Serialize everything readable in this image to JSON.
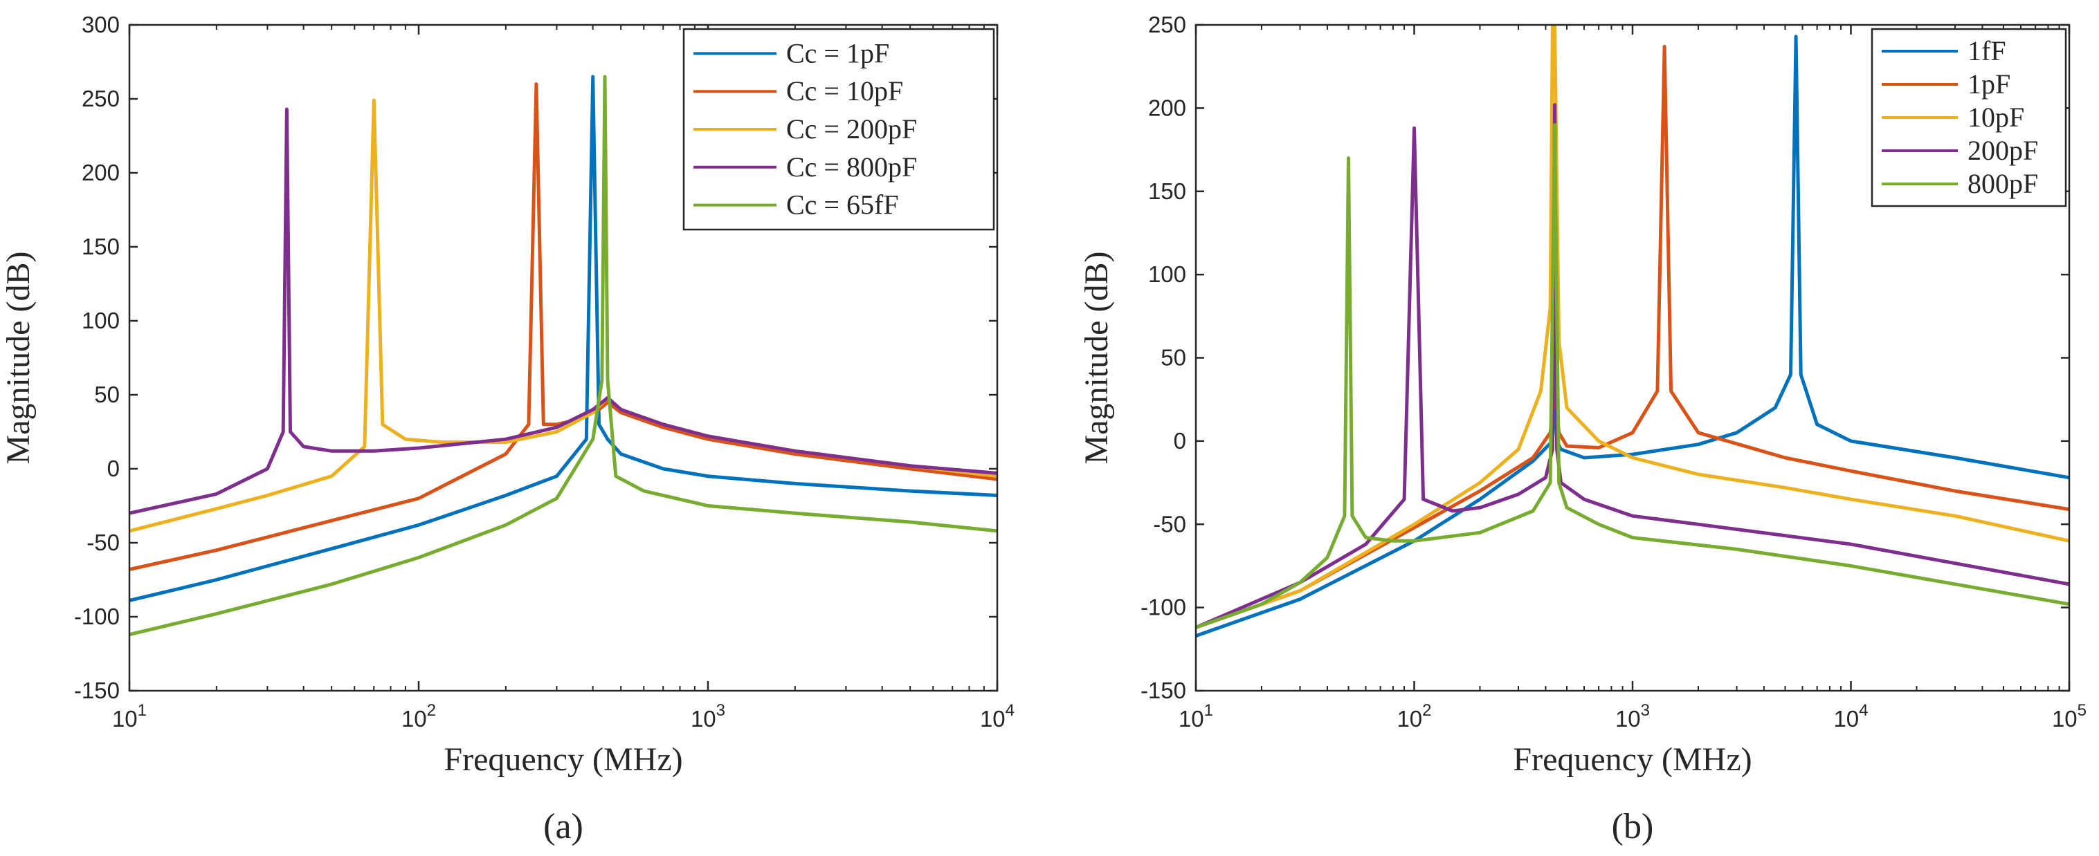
{
  "chart_data": [
    {
      "panel_label": "(a)",
      "type": "line",
      "scale_x": "log",
      "xlim": [
        10,
        10000
      ],
      "ylim": [
        -150,
        300
      ],
      "xlabel": "Frequency (MHz)",
      "ylabel": "Magnitude (dB)",
      "x_ticks": [
        10,
        100,
        1000,
        10000
      ],
      "x_tick_labels": [
        [
          "10",
          "1"
        ],
        [
          "10",
          "2"
        ],
        [
          "10",
          "3"
        ],
        [
          "10",
          "4"
        ]
      ],
      "y_ticks": [
        -150,
        -100,
        -50,
        0,
        50,
        100,
        150,
        200,
        250,
        300
      ],
      "y_tick_labels": [
        "-150",
        "-100",
        "-50",
        "0",
        "50",
        "100",
        "150",
        "200",
        "250",
        "300"
      ],
      "grid": false,
      "legend_position": "top-right",
      "series": [
        {
          "name": "Cc = 1pF",
          "color": "#0072BD",
          "x": [
            10,
            20,
            50,
            100,
            200,
            300,
            380,
            400,
            420,
            450,
            500,
            700,
            1000,
            2000,
            5000,
            10000
          ],
          "y": [
            -89,
            -75,
            -54,
            -38,
            -18,
            -5,
            20,
            265,
            30,
            20,
            10,
            0,
            -5,
            -10,
            -15,
            -18
          ]
        },
        {
          "name": "Cc = 10pF",
          "color": "#D95319",
          "x": [
            10,
            20,
            50,
            100,
            200,
            240,
            255,
            270,
            300,
            350,
            420,
            450,
            500,
            700,
            1000,
            2000,
            5000,
            10000
          ],
          "y": [
            -68,
            -55,
            -35,
            -20,
            10,
            30,
            260,
            30,
            30,
            33,
            40,
            45,
            38,
            28,
            20,
            10,
            0,
            -7
          ]
        },
        {
          "name": "Cc = 200pF",
          "color": "#EDB120",
          "x": [
            10,
            20,
            30,
            50,
            65,
            70,
            75,
            90,
            120,
            200,
            300,
            400,
            450,
            500,
            700,
            1000,
            2000,
            5000,
            10000
          ],
          "y": [
            -42,
            -27,
            -18,
            -5,
            15,
            249,
            30,
            20,
            18,
            18,
            25,
            38,
            48,
            40,
            30,
            22,
            12,
            2,
            -5
          ]
        },
        {
          "name": "Cc = 800pF",
          "color": "#7E2F8E",
          "x": [
            10,
            20,
            30,
            34,
            35,
            36,
            40,
            50,
            70,
            100,
            200,
            300,
            400,
            450,
            500,
            700,
            1000,
            2000,
            5000,
            10000
          ],
          "y": [
            -30,
            -17,
            0,
            25,
            243,
            25,
            15,
            12,
            12,
            14,
            20,
            28,
            40,
            48,
            40,
            30,
            22,
            12,
            2,
            -3
          ]
        },
        {
          "name": "Cc = 65fF",
          "color": "#77AC30",
          "x": [
            10,
            20,
            50,
            100,
            200,
            300,
            400,
            430,
            440,
            450,
            480,
            600,
            1000,
            2000,
            5000,
            10000
          ],
          "y": [
            -112,
            -98,
            -78,
            -60,
            -38,
            -20,
            20,
            60,
            265,
            60,
            -5,
            -15,
            -25,
            -30,
            -36,
            -42
          ]
        }
      ]
    },
    {
      "panel_label": "(b)",
      "type": "line",
      "scale_x": "log",
      "xlim": [
        10,
        100000
      ],
      "ylim": [
        -150,
        250
      ],
      "xlabel": "Frequency (MHz)",
      "ylabel": "Magnitude (dB)",
      "x_ticks": [
        10,
        100,
        1000,
        10000,
        100000
      ],
      "x_tick_labels": [
        [
          "10",
          "1"
        ],
        [
          "10",
          "2"
        ],
        [
          "10",
          "3"
        ],
        [
          "10",
          "4"
        ],
        [
          "10",
          "5"
        ]
      ],
      "y_ticks": [
        -150,
        -100,
        -50,
        0,
        50,
        100,
        150,
        200,
        250
      ],
      "y_tick_labels": [
        "-150",
        "-100",
        "-50",
        "0",
        "50",
        "100",
        "150",
        "200",
        "250"
      ],
      "grid": false,
      "legend_position": "top-right",
      "series": [
        {
          "name": "1fF",
          "color": "#0072BD",
          "x": [
            10,
            30,
            100,
            200,
            350,
            430,
            440,
            450,
            470,
            600,
            1000,
            2000,
            3000,
            4500,
            5300,
            5600,
            5900,
            7000,
            10000,
            30000,
            100000
          ],
          "y": [
            -117,
            -95,
            -60,
            -35,
            -12,
            0,
            40,
            0,
            -5,
            -10,
            -8,
            -2,
            5,
            20,
            40,
            243,
            40,
            10,
            0,
            -10,
            -22
          ]
        },
        {
          "name": "1pF",
          "color": "#D95319",
          "x": [
            10,
            30,
            100,
            200,
            350,
            420,
            440,
            460,
            500,
            700,
            1000,
            1300,
            1400,
            1500,
            2000,
            5000,
            10000,
            30000,
            100000
          ],
          "y": [
            -112,
            -90,
            -52,
            -30,
            -10,
            5,
            30,
            5,
            -3,
            -4,
            5,
            30,
            237,
            30,
            5,
            -10,
            -18,
            -30,
            -41
          ]
        },
        {
          "name": "10pF",
          "color": "#EDB120",
          "x": [
            10,
            30,
            100,
            200,
            300,
            380,
            420,
            430,
            440,
            460,
            500,
            700,
            1000,
            2000,
            5000,
            10000,
            30000,
            100000
          ],
          "y": [
            -112,
            -90,
            -50,
            -25,
            -5,
            30,
            80,
            250,
            250,
            60,
            20,
            0,
            -10,
            -20,
            -28,
            -35,
            -45,
            -60
          ]
        },
        {
          "name": "200pF",
          "color": "#7E2F8E",
          "x": [
            10,
            30,
            60,
            90,
            100,
            110,
            150,
            200,
            300,
            400,
            430,
            440,
            450,
            470,
            600,
            1000,
            2000,
            10000,
            100000
          ],
          "y": [
            -112,
            -85,
            -62,
            -35,
            188,
            -35,
            -42,
            -40,
            -32,
            -22,
            -5,
            202,
            -5,
            -25,
            -35,
            -45,
            -50,
            -62,
            -86
          ]
        },
        {
          "name": "800pF",
          "color": "#77AC30",
          "x": [
            10,
            20,
            30,
            40,
            48,
            50,
            52,
            60,
            80,
            100,
            200,
            350,
            420,
            440,
            460,
            500,
            700,
            1000,
            3000,
            10000,
            100000
          ],
          "y": [
            -112,
            -98,
            -85,
            -70,
            -45,
            170,
            -45,
            -58,
            -60,
            -60,
            -55,
            -42,
            -25,
            190,
            -25,
            -40,
            -50,
            -58,
            -65,
            -75,
            -98
          ]
        }
      ]
    }
  ]
}
